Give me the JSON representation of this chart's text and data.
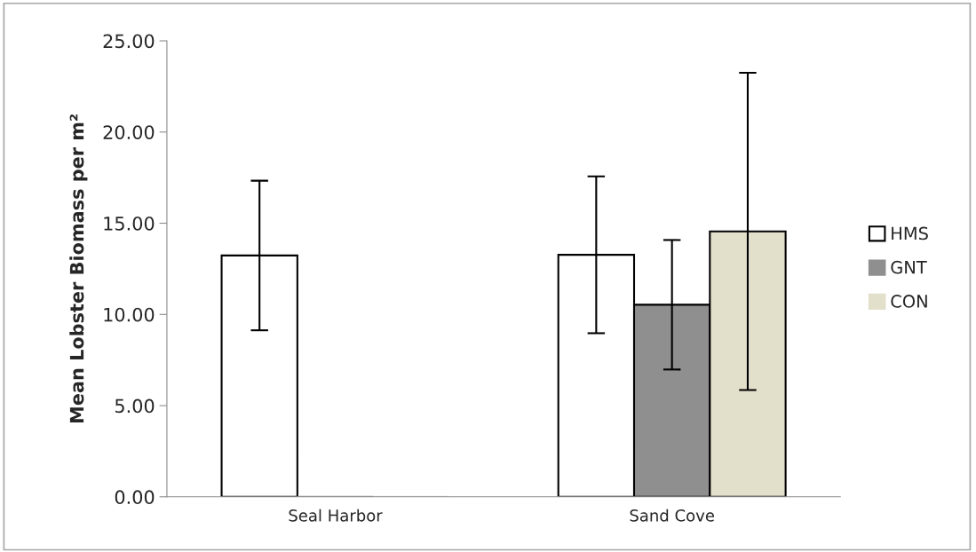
{
  "chart_data": {
    "type": "bar",
    "ylabel": "Mean Lobster Biomass per m²",
    "categories": [
      "Seal Harbor",
      "Sand Cove"
    ],
    "series": [
      {
        "name": "HMS",
        "color": "#ffffff",
        "values": [
          13.23,
          13.27
        ],
        "errors": [
          4.1,
          4.3
        ]
      },
      {
        "name": "GNT",
        "color": "#8f8f8f",
        "values": [
          0,
          10.53
        ],
        "errors": [
          null,
          3.55
        ]
      },
      {
        "name": "CON",
        "color": "#e2dfcb",
        "values": [
          0,
          14.55
        ],
        "errors": [
          null,
          8.7
        ]
      }
    ],
    "ylim": [
      0,
      25
    ],
    "yticks": [
      {
        "value": 0,
        "label": "0.00"
      },
      {
        "value": 5,
        "label": "5.00"
      },
      {
        "value": 10,
        "label": "10.00"
      },
      {
        "value": 15,
        "label": "15.00"
      },
      {
        "value": 20,
        "label": "20.00"
      },
      {
        "value": 25,
        "label": "25.00"
      }
    ],
    "grid": false,
    "legend": "right"
  }
}
